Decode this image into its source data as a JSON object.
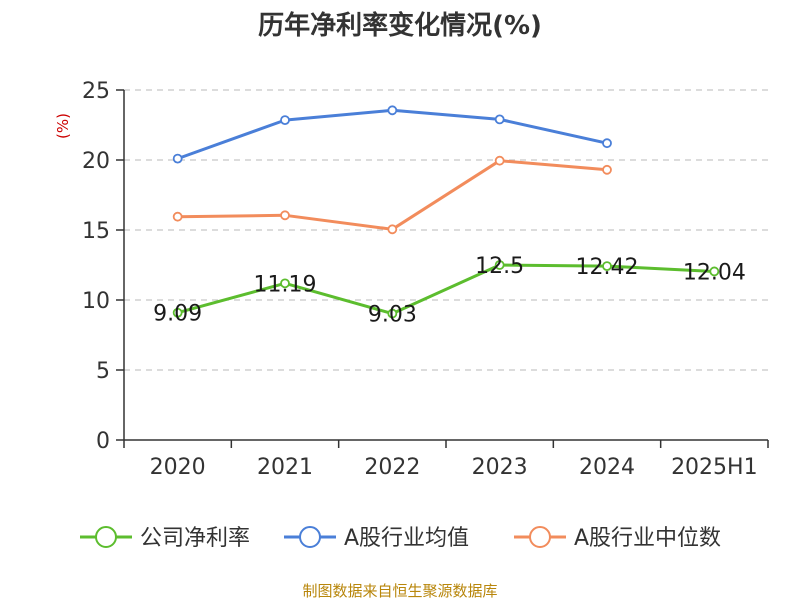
{
  "chart_data": {
    "type": "line",
    "title": "历年净利率变化情况(%)",
    "ylabel": "(%)",
    "xlabel": "",
    "ylim": [
      0,
      25
    ],
    "yticks": [
      "0",
      "5",
      "10",
      "15",
      "20",
      "25"
    ],
    "categories": [
      "2020",
      "2021",
      "2022",
      "2023",
      "2024",
      "2025H1"
    ],
    "grid": true,
    "legend_position": "bottom",
    "series": [
      {
        "name": "公司净利率",
        "color": "#5cbd2e",
        "values": [
          9.09,
          11.19,
          9.03,
          12.5,
          12.42,
          12.04
        ],
        "labels": [
          "9.09",
          "11.19",
          "9.03",
          "12.5",
          "12.42",
          "12.04"
        ]
      },
      {
        "name": "A股行业均值",
        "color": "#4a7fd8",
        "values": [
          20.1,
          22.85,
          23.55,
          22.9,
          21.2,
          null
        ]
      },
      {
        "name": "A股行业中位数",
        "color": "#f28c5c",
        "values": [
          15.95,
          16.05,
          15.05,
          19.95,
          19.3,
          null
        ]
      }
    ],
    "source": "制图数据来自恒生聚源数据库"
  }
}
